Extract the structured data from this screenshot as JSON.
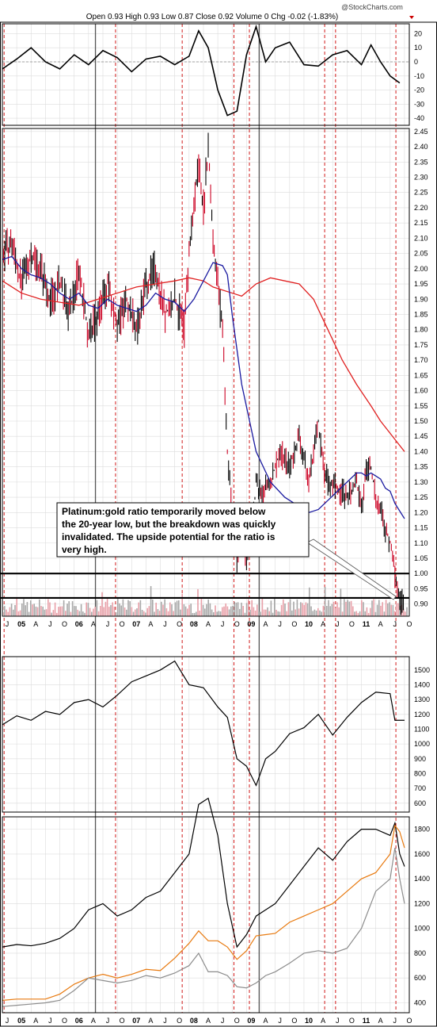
{
  "header": {
    "watermark": "@StockCharts.com",
    "quote_line": "Open 0.93  High 0.93  Low 0.87  Close 0.92  Volume 0  Chg -0.02 (-1.83%)"
  },
  "annotation": {
    "lines": [
      "Platinum:gold ratio temporarily moved below",
      "the 20-year low, but the breakdown was quickly",
      "invalidated. The upside potential for the ratio is",
      "very high."
    ]
  },
  "x_axis": {
    "labels": [
      "J",
      "05",
      "A",
      "J",
      "O",
      "06",
      "A",
      "J",
      "O",
      "07",
      "A",
      "J",
      "O",
      "08",
      "A",
      "J",
      "O",
      "09",
      "A",
      "J",
      "O",
      "10",
      "A",
      "J",
      "O",
      "11",
      "A",
      "J",
      "O"
    ],
    "bold": [
      "05",
      "06",
      "07",
      "08",
      "09",
      "10",
      "11"
    ]
  },
  "colors": {
    "up_bar": "#000000",
    "down_bar": "#cc0022",
    "ma_short": "#1a1aa0",
    "ma_long": "#e02020",
    "gold": "#e87a10",
    "silver_series": "#8c8c8c",
    "vline_red": "#cc0000",
    "vline_gray": "#555555",
    "grid": "#dcdcdc"
  },
  "chart_data": [
    {
      "type": "line",
      "panel": "momentum oscillator",
      "ylim": [
        -45,
        27
      ],
      "yticks": [
        20,
        10,
        0,
        -10,
        -20,
        -30,
        -40
      ],
      "x": [
        "2004-10",
        "2005-01",
        "2005-04",
        "2005-07",
        "2005-10",
        "2006-01",
        "2006-04",
        "2006-07",
        "2006-10",
        "2007-01",
        "2007-04",
        "2007-07",
        "2007-10",
        "2008-01",
        "2008-03",
        "2008-05",
        "2008-07",
        "2008-09",
        "2008-11",
        "2009-01",
        "2009-03",
        "2009-05",
        "2009-07",
        "2009-10",
        "2010-01",
        "2010-04",
        "2010-07",
        "2010-10",
        "2011-01",
        "2011-03",
        "2011-05",
        "2011-07",
        "2011-09"
      ],
      "values": [
        -5,
        2,
        10,
        0,
        -5,
        5,
        -2,
        8,
        3,
        -7,
        2,
        4,
        -2,
        4,
        22,
        10,
        -20,
        -38,
        -35,
        5,
        25,
        0,
        10,
        14,
        -2,
        -3,
        5,
        8,
        -2,
        12,
        0,
        -10,
        -15
      ]
    },
    {
      "type": "candlestick",
      "panel": "platinum:gold ratio",
      "ylim": [
        0.86,
        2.46
      ],
      "yticks": [
        2.45,
        2.4,
        2.35,
        2.3,
        2.25,
        2.2,
        2.15,
        2.1,
        2.05,
        2.0,
        1.95,
        1.9,
        1.85,
        1.8,
        1.75,
        1.7,
        1.65,
        1.6,
        1.55,
        1.5,
        1.45,
        1.4,
        1.35,
        1.3,
        1.25,
        1.2,
        1.15,
        1.1,
        1.05,
        1.0,
        0.95,
        0.9
      ],
      "x": [
        "2004-10",
        "2004-12",
        "2005-02",
        "2005-04",
        "2005-06",
        "2005-08",
        "2005-10",
        "2005-12",
        "2006-02",
        "2006-04",
        "2006-06",
        "2006-08",
        "2006-10",
        "2006-12",
        "2007-02",
        "2007-04",
        "2007-06",
        "2007-08",
        "2007-10",
        "2007-12",
        "2008-01",
        "2008-02",
        "2008-03",
        "2008-04",
        "2008-05",
        "2008-06",
        "2008-07",
        "2008-08",
        "2008-09",
        "2008-10",
        "2008-11",
        "2008-12",
        "2009-01",
        "2009-02",
        "2009-03",
        "2009-04",
        "2009-06",
        "2009-08",
        "2009-10",
        "2009-12",
        "2010-02",
        "2010-03",
        "2010-04",
        "2010-05",
        "2010-06",
        "2010-08",
        "2010-10",
        "2010-12",
        "2011-01",
        "2011-02",
        "2011-03",
        "2011-04",
        "2011-05",
        "2011-06",
        "2011-07",
        "2011-08",
        "2011-09",
        "2011-10"
      ],
      "close": [
        2.05,
        2.08,
        1.95,
        2.05,
        2.0,
        1.9,
        1.95,
        1.85,
        2.0,
        1.78,
        1.85,
        1.95,
        1.82,
        1.9,
        1.8,
        1.95,
        2.0,
        1.85,
        1.9,
        1.8,
        2.05,
        2.2,
        2.35,
        2.2,
        2.4,
        2.1,
        1.95,
        1.8,
        1.4,
        1.2,
        1.05,
        1.15,
        1.05,
        1.1,
        1.3,
        1.25,
        1.3,
        1.4,
        1.35,
        1.45,
        1.3,
        1.4,
        1.5,
        1.35,
        1.3,
        1.28,
        1.25,
        1.3,
        1.2,
        1.35,
        1.35,
        1.25,
        1.2,
        1.15,
        1.1,
        1.0,
        0.9,
        0.92
      ],
      "ma_50": [
        2.03,
        2.04,
        2.0,
        1.98,
        1.97,
        1.95,
        1.92,
        1.9,
        1.92,
        1.88,
        1.87,
        1.9,
        1.88,
        1.87,
        1.86,
        1.88,
        1.92,
        1.9,
        1.89,
        1.86,
        1.9,
        1.96,
        2.02,
        2.01,
        1.98,
        1.85,
        1.62,
        1.4,
        1.3,
        1.25,
        1.22,
        1.2,
        1.21,
        1.24,
        1.27,
        1.3,
        1.33,
        1.33,
        1.32,
        1.33,
        1.32,
        1.31,
        1.28,
        1.27,
        1.23,
        1.18
      ],
      "ma_50_x": [
        "2004-10",
        "2004-12",
        "2005-02",
        "2005-04",
        "2005-06",
        "2005-08",
        "2005-10",
        "2005-12",
        "2006-02",
        "2006-04",
        "2006-06",
        "2006-08",
        "2006-10",
        "2006-12",
        "2007-02",
        "2007-04",
        "2007-06",
        "2007-08",
        "2007-10",
        "2007-12",
        "2008-02",
        "2008-04",
        "2008-06",
        "2008-08",
        "2008-09",
        "2008-10",
        "2008-12",
        "2009-03",
        "2009-06",
        "2009-09",
        "2009-12",
        "2010-02",
        "2010-04",
        "2010-06",
        "2010-08",
        "2010-10",
        "2010-12",
        "2011-01",
        "2011-02",
        "2011-03",
        "2011-04",
        "2011-05",
        "2011-06",
        "2011-07",
        "2011-08",
        "2011-10"
      ],
      "ma_200": [
        1.96,
        1.92,
        1.9,
        1.89,
        1.88,
        1.9,
        1.92,
        1.94,
        1.95,
        1.96,
        1.97,
        1.96,
        1.94,
        1.93,
        1.92,
        1.91,
        1.95,
        1.97,
        1.96,
        1.95,
        1.9,
        1.8,
        1.7,
        1.62,
        1.55,
        1.5,
        1.46,
        1.42,
        1.4
      ],
      "ma_200_x": [
        "2004-10",
        "2005-02",
        "2005-06",
        "2005-10",
        "2006-02",
        "2006-06",
        "2006-10",
        "2007-02",
        "2007-06",
        "2007-10",
        "2008-01",
        "2008-04",
        "2008-06",
        "2008-08",
        "2008-10",
        "2008-12",
        "2009-03",
        "2009-06",
        "2009-09",
        "2009-12",
        "2010-03",
        "2010-06",
        "2010-09",
        "2010-12",
        "2011-03",
        "2011-05",
        "2011-07",
        "2011-09",
        "2011-10"
      ],
      "horizontal_lines": [
        1.0,
        0.92
      ]
    },
    {
      "type": "bar",
      "panel": "volume",
      "note": "volume histogram at bottom of ratio panel"
    },
    {
      "type": "line",
      "panel": "index line",
      "ylim": [
        540,
        1590
      ],
      "yticks": [
        1500,
        1400,
        1300,
        1200,
        1100,
        1000,
        900,
        800,
        700,
        600
      ],
      "x": [
        "2004-10",
        "2005-01",
        "2005-04",
        "2005-07",
        "2005-10",
        "2006-01",
        "2006-04",
        "2006-07",
        "2006-10",
        "2007-01",
        "2007-04",
        "2007-07",
        "2007-10",
        "2008-01",
        "2008-04",
        "2008-07",
        "2008-09",
        "2008-11",
        "2009-01",
        "2009-03",
        "2009-05",
        "2009-07",
        "2009-10",
        "2010-01",
        "2010-04",
        "2010-07",
        "2010-10",
        "2011-01",
        "2011-04",
        "2011-07",
        "2011-08",
        "2011-10"
      ],
      "values": [
        1130,
        1190,
        1160,
        1220,
        1200,
        1280,
        1300,
        1250,
        1330,
        1420,
        1460,
        1500,
        1560,
        1400,
        1380,
        1250,
        1180,
        900,
        850,
        720,
        900,
        950,
        1070,
        1110,
        1200,
        1060,
        1180,
        1280,
        1350,
        1340,
        1160,
        1160
      ]
    },
    {
      "type": "line",
      "panel": "prices",
      "ylim": [
        320,
        1900
      ],
      "yticks": [
        1800,
        1600,
        1400,
        1200,
        1000,
        800,
        600,
        400
      ],
      "x": [
        "2004-10",
        "2005-01",
        "2005-04",
        "2005-07",
        "2005-10",
        "2006-01",
        "2006-04",
        "2006-07",
        "2006-10",
        "2007-01",
        "2007-04",
        "2007-07",
        "2007-10",
        "2008-01",
        "2008-03",
        "2008-05",
        "2008-07",
        "2008-09",
        "2008-11",
        "2009-01",
        "2009-03",
        "2009-05",
        "2009-07",
        "2009-10",
        "2010-01",
        "2010-04",
        "2010-07",
        "2010-10",
        "2011-01",
        "2011-04",
        "2011-07",
        "2011-08",
        "2011-09",
        "2011-10"
      ],
      "series": [
        {
          "values": [
            850,
            870,
            860,
            880,
            920,
            1000,
            1150,
            1200,
            1100,
            1150,
            1250,
            1300,
            1450,
            1600,
            2000,
            2050,
            1750,
            1200,
            850,
            950,
            1100,
            1150,
            1200,
            1350,
            1500,
            1650,
            1550,
            1700,
            1800,
            1800,
            1750,
            1850,
            1600,
            1500
          ]
        },
        {
          "values": [
            420,
            430,
            430,
            430,
            470,
            550,
            600,
            630,
            600,
            630,
            670,
            660,
            760,
            880,
            980,
            900,
            900,
            850,
            750,
            820,
            940,
            950,
            960,
            1050,
            1100,
            1150,
            1200,
            1300,
            1400,
            1450,
            1600,
            1830,
            1780,
            1650
          ]
        },
        {
          "values": [
            370,
            380,
            390,
            400,
            420,
            500,
            600,
            580,
            560,
            580,
            620,
            600,
            640,
            700,
            800,
            650,
            650,
            620,
            530,
            520,
            560,
            620,
            650,
            720,
            800,
            820,
            800,
            840,
            1000,
            1300,
            1400,
            1650,
            1400,
            1200
          ]
        }
      ]
    }
  ]
}
